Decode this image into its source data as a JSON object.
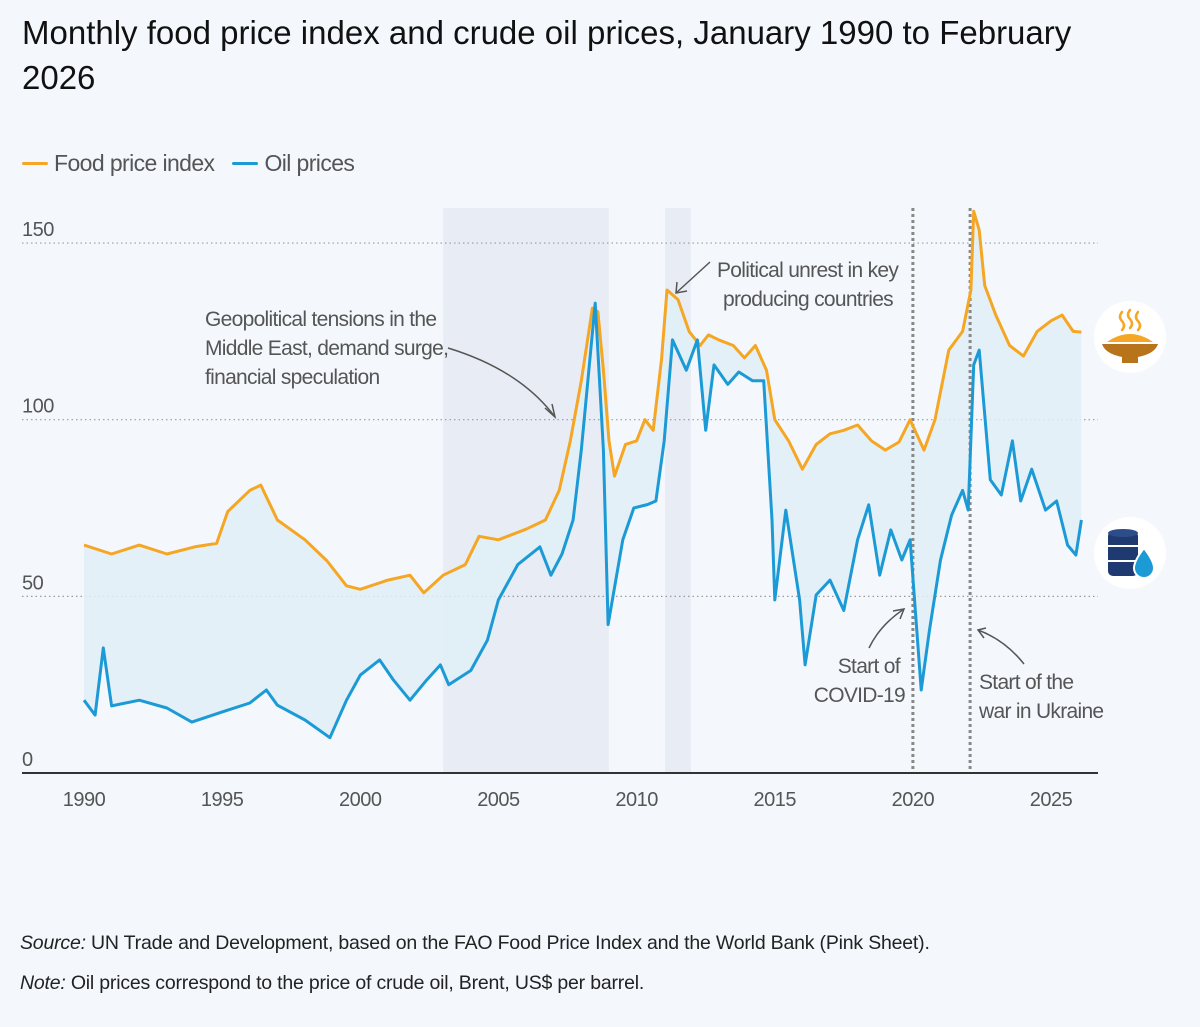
{
  "title": "Monthly food price index and crude oil prices, January 1990 to February 2026",
  "legend": [
    {
      "label": "Food price index",
      "color": "#f5a623"
    },
    {
      "label": "Oil prices",
      "color": "#1b9ad6"
    }
  ],
  "chart_data": {
    "type": "line",
    "title": "Monthly food price index and crude oil prices, January 1990 to February 2026",
    "xlabel": "",
    "ylabel": "",
    "xlim": [
      1988.6,
      2027.6
    ],
    "ylim": [
      0,
      160
    ],
    "x_ticks": [
      1990,
      1995,
      2000,
      2005,
      2010,
      2015,
      2020,
      2025
    ],
    "y_ticks": [
      0,
      50,
      100,
      150
    ],
    "grid": true,
    "legend_position": "top-left",
    "shaded_periods": [
      [
        2003.0,
        2009.0
      ],
      [
        2011.03,
        2011.97
      ]
    ],
    "event_lines": [
      2020.0,
      2022.07
    ],
    "series": [
      {
        "name": "Food price index",
        "color": "#f5a623",
        "x": [
          1990,
          1991,
          1992,
          1993,
          1994,
          1994.8,
          1995.2,
          1996.0,
          1996.4,
          1997,
          1998,
          1998.8,
          1999.5,
          2000,
          2001,
          2001.8,
          2002.3,
          2003,
          2003.8,
          2004.3,
          2005,
          2006,
          2006.7,
          2007.2,
          2007.6,
          2008.0,
          2008.4,
          2008.6,
          2008.8,
          2009.0,
          2009.2,
          2009.6,
          2010,
          2010.3,
          2010.6,
          2010.9,
          2011.1,
          2011.5,
          2011.9,
          2012.3,
          2012.6,
          2013,
          2013.5,
          2013.9,
          2014.3,
          2014.7,
          2015.0,
          2015.5,
          2016.0,
          2016.5,
          2017.0,
          2017.5,
          2018,
          2018.5,
          2019,
          2019.5,
          2019.9,
          2020.4,
          2020.8,
          2021.3,
          2021.8,
          2022.1,
          2022.2,
          2022.4,
          2022.6,
          2023.0,
          2023.5,
          2024.0,
          2024.5,
          2025.0,
          2025.4,
          2025.8,
          2026.1
        ],
        "values": [
          64.5,
          62,
          64.5,
          62,
          64,
          65,
          74,
          80,
          81.5,
          71.6,
          66,
          60,
          53,
          52,
          54.6,
          56,
          51,
          56,
          59,
          67,
          66,
          69,
          71.6,
          80,
          94,
          111,
          131.6,
          130.5,
          114,
          94,
          84,
          93,
          94,
          100,
          97,
          117,
          136.7,
          134,
          125,
          121,
          124,
          122.5,
          121,
          117.5,
          121,
          114,
          100,
          94,
          86,
          93,
          96,
          97,
          98.5,
          94,
          91.4,
          93.7,
          100,
          91.4,
          100,
          119.7,
          125,
          136.7,
          159,
          153.7,
          138,
          129.6,
          121,
          118,
          125,
          128,
          129.6,
          125,
          124.8
        ]
      },
      {
        "name": "Oil prices",
        "color": "#1b9ad6",
        "x": [
          1990,
          1990.4,
          1990.7,
          1991,
          1992,
          1993,
          1993.9,
          1995,
          1996.0,
          1996.6,
          1997.0,
          1998.0,
          1998.9,
          1999.5,
          2000,
          2000.7,
          2001.2,
          2001.8,
          2002.4,
          2002.9,
          2003.2,
          2004,
          2004.6,
          2005,
          2005.7,
          2006.5,
          2006.9,
          2007.3,
          2007.7,
          2008.0,
          2008.5,
          2008.8,
          2008.97,
          2009.5,
          2009.9,
          2010.4,
          2010.7,
          2011.0,
          2011.3,
          2011.8,
          2012.2,
          2012.5,
          2012.8,
          2013.3,
          2013.7,
          2014.2,
          2014.6,
          2014.9,
          2015.0,
          2015.4,
          2015.9,
          2016.1,
          2016.5,
          2017,
          2017.5,
          2018,
          2018.4,
          2018.8,
          2019.2,
          2019.6,
          2019.9,
          2020.3,
          2020.6,
          2021.0,
          2021.4,
          2021.8,
          2022.0,
          2022.2,
          2022.4,
          2022.8,
          2023.2,
          2023.6,
          2023.9,
          2024.3,
          2024.8,
          2025.2,
          2025.6,
          2025.9,
          2026.1
        ],
        "values": [
          20.6,
          16.4,
          35.4,
          19,
          20.6,
          18.4,
          14.4,
          17.3,
          19.8,
          23.5,
          19.2,
          15,
          10,
          20.6,
          27.7,
          32,
          26.3,
          20.6,
          26.3,
          30.6,
          25,
          29,
          37.6,
          49,
          59,
          64,
          56,
          62,
          71.6,
          91.4,
          133,
          91.4,
          42,
          66,
          75,
          76,
          77,
          94,
          122.6,
          114,
          122.6,
          97,
          115.5,
          110,
          113.5,
          111,
          111,
          71.6,
          49,
          74.4,
          49,
          30.6,
          50.4,
          54.6,
          46,
          66,
          75.9,
          56,
          68.8,
          60.3,
          66,
          23.5,
          40.5,
          60.3,
          73,
          80,
          74.4,
          115.5,
          119.7,
          83,
          78.7,
          94,
          77,
          86,
          74.4,
          77,
          64.5,
          61.7,
          71.6
        ]
      }
    ],
    "annotations": [
      {
        "lines": [
          "Geopolitical tensions in the",
          "Middle East, demand surge,",
          "financial speculation"
        ]
      },
      {
        "lines": [
          "Political unrest in key",
          "producing countries"
        ]
      },
      {
        "lines": [
          "Start of",
          "COVID-19"
        ]
      },
      {
        "lines": [
          "Start of the",
          "war in Ukraine"
        ]
      }
    ]
  },
  "icons": [
    "food-bowl-icon",
    "oil-barrel-icon"
  ],
  "source_label": "Source:",
  "source_text": " UN Trade and Development, based on the FAO Food Price Index and the World Bank (Pink Sheet).",
  "note_label": "Note:",
  "note_text": " Oil prices correspond to the price of crude oil, Brent, US$ per barrel."
}
